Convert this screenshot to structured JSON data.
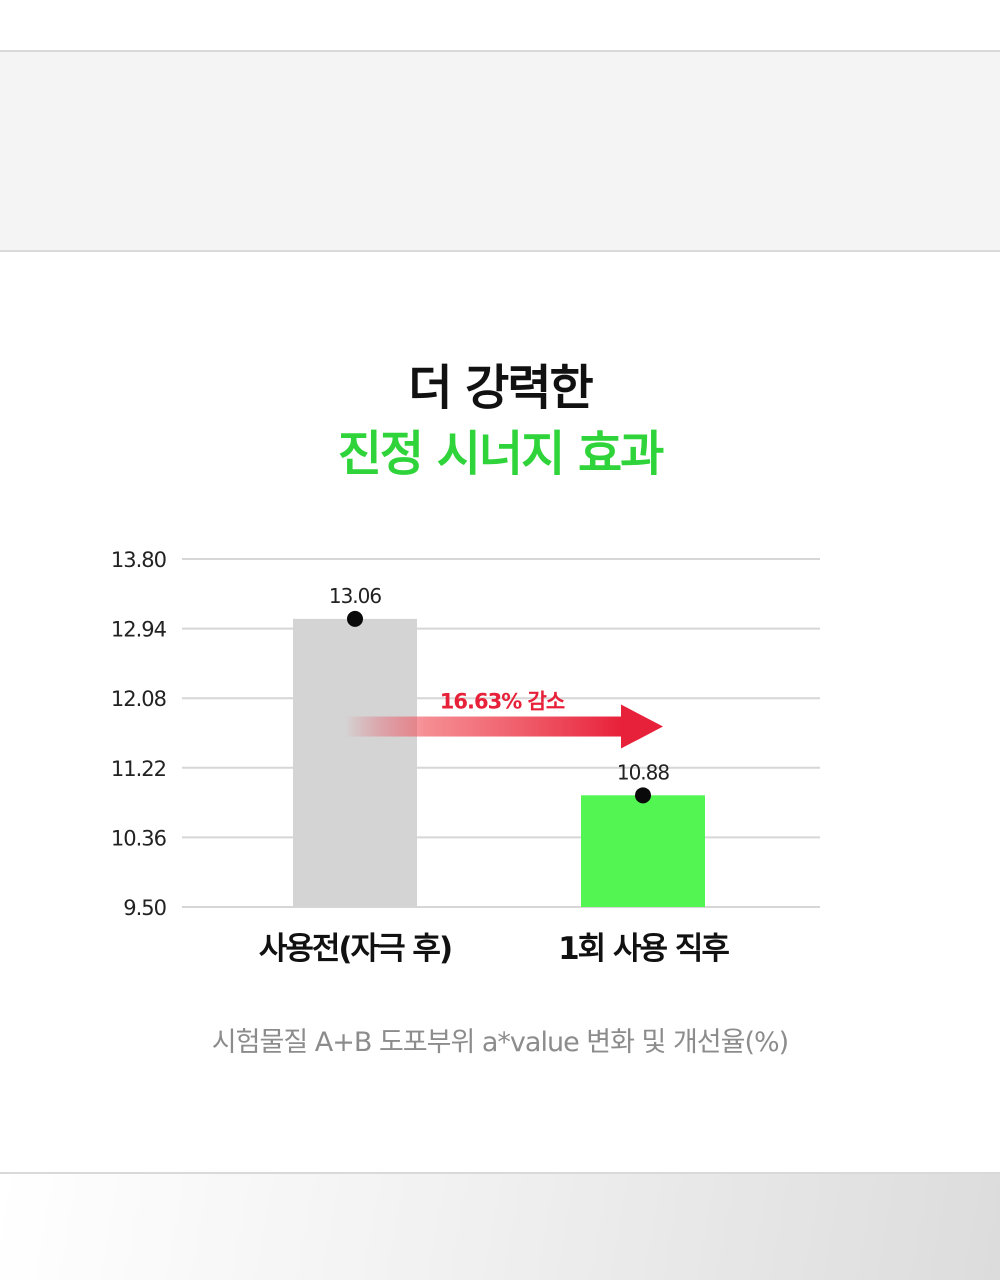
{
  "title": {
    "line1": "더 강력한",
    "line2": "진정 시너지 효과"
  },
  "colors": {
    "accent_green": "#2fd43a",
    "bar_gray": "#d4d4d4",
    "bar_green": "#52f552",
    "arrow_red": "#e8213a"
  },
  "chart_data": {
    "type": "bar",
    "categories": [
      "사용전(자극 후)",
      "1회 사용 직후"
    ],
    "values": [
      13.06,
      10.88
    ],
    "value_labels": [
      "13.06",
      "10.88"
    ],
    "bar_colors": [
      "#d4d4d4",
      "#52f552"
    ],
    "ylim": [
      9.5,
      13.8
    ],
    "yticks": [
      13.8,
      12.94,
      12.08,
      11.22,
      10.36,
      9.5
    ],
    "ytick_labels": [
      "13.80",
      "12.94",
      "12.08",
      "11.22",
      "10.36",
      "9.50"
    ],
    "grid": true,
    "annotation": {
      "text": "16.63% 감소",
      "type": "arrow",
      "from_category": 0,
      "to_category": 1
    }
  },
  "caption": "시험물질 A+B 도포부위 a*value 변화 및 개선율(%)"
}
